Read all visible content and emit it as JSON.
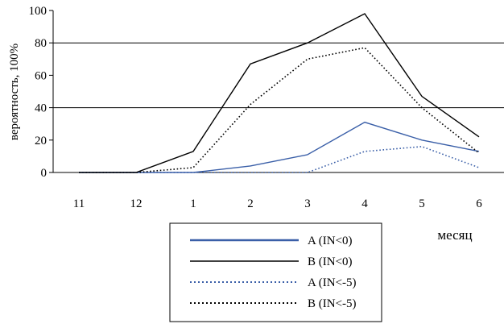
{
  "chart_data": {
    "type": "line",
    "title": "",
    "xlabel": "месяц",
    "ylabel": "вероятность, 100%",
    "categories": [
      "11",
      "12",
      "1",
      "2",
      "3",
      "4",
      "5",
      "6"
    ],
    "yticks": [
      "0",
      "20",
      "40",
      "60",
      "80",
      "100"
    ],
    "ylim": [
      0,
      100
    ],
    "grid": "horizontal at 40 and 80",
    "legend_position": "bottom",
    "series": [
      {
        "name": "A (IN<0)",
        "color": "#3a5fa8",
        "dash": "solid",
        "values": [
          0,
          0,
          0,
          4,
          11,
          31,
          20,
          13
        ]
      },
      {
        "name": "B (IN<0)",
        "color": "#000000",
        "dash": "solid",
        "values": [
          0,
          0,
          13,
          67,
          80,
          98,
          47,
          22
        ]
      },
      {
        "name": "A (IN<-5)",
        "color": "#3a5fa8",
        "dash": "dotted",
        "values": [
          0,
          0,
          0,
          0,
          0,
          13,
          16,
          3
        ]
      },
      {
        "name": "B (IN<-5)",
        "color": "#000000",
        "dash": "dotted",
        "values": [
          0,
          0,
          3,
          42,
          70,
          77,
          40,
          12
        ]
      }
    ]
  }
}
